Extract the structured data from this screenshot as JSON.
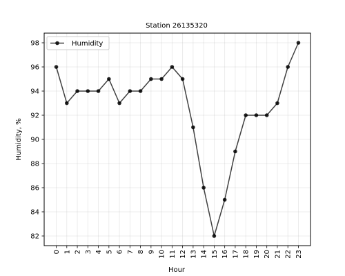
{
  "chart_data": {
    "type": "line",
    "title": "Station 26135320",
    "xlabel": "Hour",
    "ylabel": "Humidity, %",
    "x": [
      "0",
      "1",
      "2",
      "3",
      "4",
      "5",
      "6",
      "7",
      "8",
      "9",
      "10",
      "11",
      "12",
      "13",
      "14",
      "15",
      "16",
      "17",
      "18",
      "19",
      "20",
      "21",
      "22",
      "23"
    ],
    "series": [
      {
        "name": "Humidity",
        "values": [
          96,
          93,
          94,
          94,
          94,
          95,
          93,
          94,
          94,
          95,
          95,
          96,
          95,
          91,
          86,
          82,
          85,
          89,
          92,
          92,
          92,
          93,
          96,
          98
        ],
        "color": "#000000"
      }
    ],
    "ylim": [
      81.2,
      98.8
    ],
    "yticks": [
      82,
      84,
      86,
      88,
      90,
      92,
      94,
      96,
      98
    ],
    "grid": true,
    "legend": "top-left"
  }
}
